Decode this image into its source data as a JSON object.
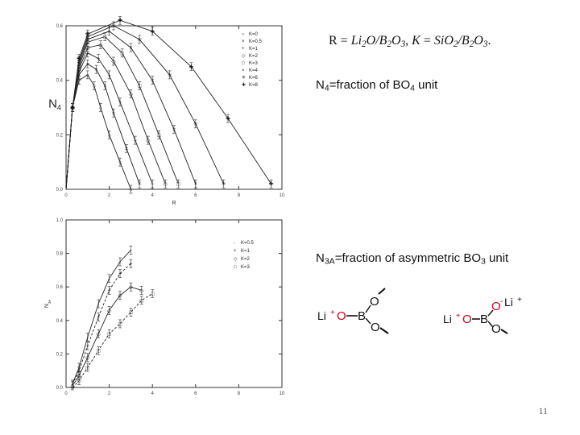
{
  "formula": {
    "r_symbol": "R",
    "r_ratio": "Li<sub>2</sub>O/B<sub>2</sub>O<sub>3</sub>",
    "k_symbol": "K",
    "k_ratio": "SiO<sub>2</sub>/B<sub>2</sub>O<sub>3</sub>"
  },
  "n4_definition": {
    "symbol": "N<sub>4</sub>",
    "text": "=fraction of BO<sub>4</sub> unit"
  },
  "n3a_definition": {
    "symbol": "N<sub>3A</sub>",
    "text": "=fraction of asymmetric BO<sub>3</sub> unit"
  },
  "structures": {
    "left": {
      "cation": "Li",
      "charge": "+",
      "atom_o_bridge": "O",
      "atom_b": "B",
      "atom_o_top": "O",
      "atom_o_bottom": "O"
    },
    "right": {
      "cation_left": "Li",
      "cation_right": "Li",
      "charge": "+",
      "atom_o_bridge": "O",
      "atom_b": "B",
      "atom_o_top": "O",
      "atom_o_bottom": "O",
      "minus": "-"
    }
  },
  "page_number": "11",
  "colors": {
    "oxygen_red": "#d0021b",
    "ink": "#111111"
  },
  "chart_data": [
    {
      "type": "line",
      "xlabel": "R",
      "ylabel": "N<sub>4</sub>",
      "xlim": [
        0,
        10
      ],
      "ylim": [
        0,
        0.6
      ],
      "xticks": [
        "0",
        "2",
        "4",
        "6",
        "8",
        "10"
      ],
      "yticks": [
        "0.0",
        "0.2",
        "0.4",
        "0.6"
      ],
      "legend_position": "top-right",
      "series": [
        {
          "name": "K=0",
          "marker": "○",
          "x": [
            0,
            0.3,
            0.6,
            1.0,
            1.3,
            1.6,
            2.0,
            2.5,
            3.0
          ],
          "y": [
            0,
            0.3,
            0.4,
            0.42,
            0.38,
            0.3,
            0.2,
            0.1,
            0.0
          ]
        },
        {
          "name": "K=0.5",
          "marker": "×",
          "x": [
            0,
            0.3,
            0.6,
            1.0,
            1.4,
            1.8,
            2.2,
            2.8,
            3.4
          ],
          "y": [
            0,
            0.3,
            0.42,
            0.46,
            0.44,
            0.38,
            0.28,
            0.15,
            0.02
          ]
        },
        {
          "name": "K=1",
          "marker": "+",
          "x": [
            0,
            0.3,
            0.6,
            1.0,
            1.5,
            2.0,
            2.5,
            3.2,
            4.0
          ],
          "y": [
            0,
            0.3,
            0.43,
            0.5,
            0.48,
            0.42,
            0.32,
            0.18,
            0.02
          ]
        },
        {
          "name": "K=2",
          "marker": "◇",
          "x": [
            0,
            0.3,
            0.6,
            1.0,
            1.6,
            2.2,
            3.0,
            3.8,
            4.6
          ],
          "y": [
            0,
            0.3,
            0.44,
            0.52,
            0.53,
            0.47,
            0.35,
            0.18,
            0.02
          ]
        },
        {
          "name": "K=3",
          "marker": "□",
          "x": [
            0,
            0.3,
            0.6,
            1.0,
            1.8,
            2.6,
            3.4,
            4.3,
            5.2
          ],
          "y": [
            0,
            0.3,
            0.45,
            0.54,
            0.56,
            0.5,
            0.38,
            0.2,
            0.02
          ]
        },
        {
          "name": "K=4",
          "marker": "×",
          "x": [
            0,
            0.3,
            0.6,
            1.0,
            2.0,
            3.0,
            4.0,
            5.0,
            6.0
          ],
          "y": [
            0,
            0.3,
            0.46,
            0.55,
            0.58,
            0.52,
            0.4,
            0.22,
            0.02
          ]
        },
        {
          "name": "K=6",
          "marker": "✳",
          "x": [
            0,
            0.3,
            0.6,
            1.0,
            2.2,
            3.4,
            4.8,
            6.0,
            7.3
          ],
          "y": [
            0,
            0.3,
            0.47,
            0.56,
            0.6,
            0.55,
            0.42,
            0.24,
            0.02
          ]
        },
        {
          "name": "K=8",
          "marker": "✚",
          "x": [
            0,
            0.3,
            0.6,
            1.0,
            2.5,
            4.0,
            5.8,
            7.5,
            9.5
          ],
          "y": [
            0,
            0.3,
            0.48,
            0.57,
            0.62,
            0.58,
            0.45,
            0.26,
            0.02
          ]
        }
      ]
    },
    {
      "type": "line",
      "xlabel": "R",
      "ylabel": "N<sub>3A</sub>",
      "xlim": [
        0,
        10
      ],
      "ylim": [
        0,
        1.0
      ],
      "xticks": [
        "0",
        "2",
        "4",
        "6",
        "8",
        "10"
      ],
      "yticks": [
        "0.0",
        "0.2",
        "0.4",
        "0.6",
        "0.8",
        "1.0"
      ],
      "legend_position": "top-right",
      "series": [
        {
          "name": "K=0.5",
          "marker": "-",
          "x": [
            0.3,
            0.6,
            1.0,
            1.5,
            2.0,
            2.5,
            3.0
          ],
          "y": [
            0.02,
            0.12,
            0.3,
            0.5,
            0.65,
            0.75,
            0.82
          ]
        },
        {
          "name": "K=1",
          "marker": "+",
          "x": [
            0.3,
            0.6,
            1.0,
            1.5,
            2.0,
            2.5,
            3.0
          ],
          "y": [
            0.02,
            0.1,
            0.25,
            0.42,
            0.58,
            0.68,
            0.74
          ]
        },
        {
          "name": "K=2",
          "marker": "◇",
          "x": [
            0.3,
            0.6,
            1.0,
            1.5,
            2.0,
            2.5,
            3.0,
            3.5
          ],
          "y": [
            0.01,
            0.07,
            0.18,
            0.32,
            0.46,
            0.55,
            0.6,
            0.58
          ]
        },
        {
          "name": "K=3",
          "marker": "□",
          "x": [
            0.3,
            0.6,
            1.0,
            1.5,
            2.0,
            2.5,
            3.0,
            3.5,
            4.0
          ],
          "y": [
            0.0,
            0.04,
            0.12,
            0.22,
            0.32,
            0.38,
            0.45,
            0.52,
            0.56
          ]
        }
      ]
    }
  ]
}
